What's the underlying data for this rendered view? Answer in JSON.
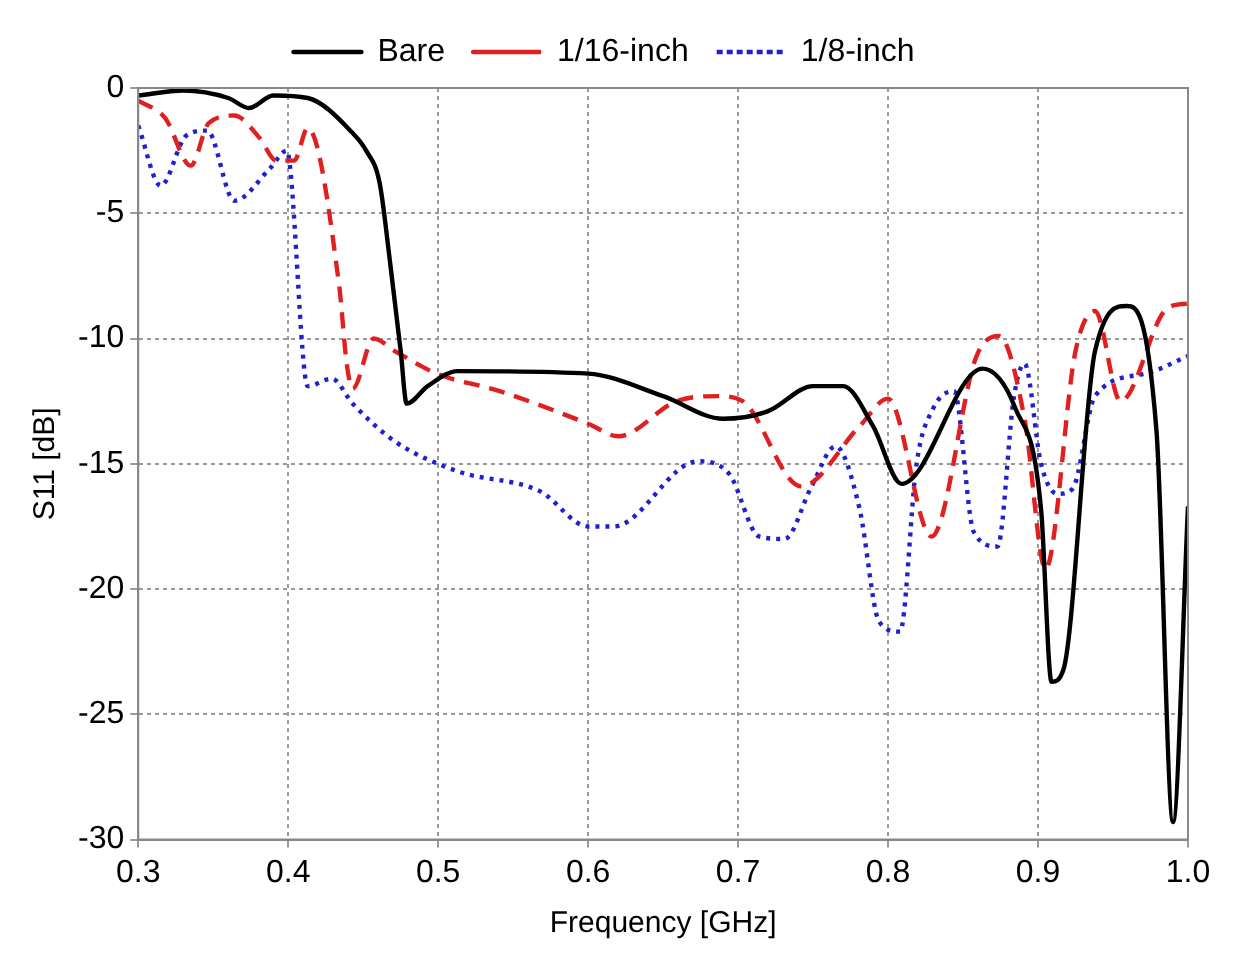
{
  "chart_data": {
    "type": "line",
    "xlabel": "Frequency [GHz]",
    "ylabel": "S11 [dB]",
    "xlim": [
      0.3,
      1.0
    ],
    "xticks": [
      {
        "value": 0.3,
        "label": "0.3"
      },
      {
        "value": 0.4,
        "label": "0.4"
      },
      {
        "value": 0.5,
        "label": "0.5"
      },
      {
        "value": 0.6,
        "label": "0.6"
      },
      {
        "value": 0.7,
        "label": "0.7"
      },
      {
        "value": 0.8,
        "label": "0.8"
      },
      {
        "value": 0.9,
        "label": "0.9"
      },
      {
        "value": 1.0,
        "label": "1.0"
      }
    ],
    "ylim": [
      -30,
      0
    ],
    "yticks": [
      -30,
      -25,
      -20,
      -15,
      -10,
      -5,
      0
    ],
    "grid": true,
    "legend": "top",
    "marker": "none",
    "series": [
      {
        "name": "Bare",
        "color": "#000000",
        "line_style": "solid",
        "x": [
          0.3,
          0.33,
          0.36,
          0.374,
          0.39,
          0.413,
          0.443,
          0.452,
          0.461,
          0.468,
          0.475,
          0.479,
          0.493,
          0.513,
          0.6,
          0.65,
          0.69,
          0.72,
          0.75,
          0.77,
          0.79,
          0.809,
          0.863,
          0.885,
          0.902,
          0.909,
          0.917,
          0.938,
          0.959,
          0.979,
          0.99,
          1.0
        ],
        "values": [
          -0.3,
          -0.1,
          -0.4,
          -0.8,
          -0.3,
          -0.4,
          -1.8,
          -2.5,
          -3.8,
          -7,
          -10.5,
          -12.6,
          -11.9,
          -11.3,
          -11.4,
          -12.3,
          -13.2,
          -12.9,
          -11.9,
          -11.9,
          -13.5,
          -15.8,
          -11.2,
          -12.8,
          -16.8,
          -23.7,
          -23.2,
          -10.5,
          -8.7,
          -13.7,
          -29.3,
          -16.7
        ]
      },
      {
        "name": "1/16-inch",
        "color": "#e02020",
        "line_style": "dashed",
        "x": [
          0.3,
          0.318,
          0.335,
          0.347,
          0.364,
          0.381,
          0.392,
          0.404,
          0.413,
          0.434,
          0.439,
          0.443,
          0.457,
          0.471,
          0.499,
          0.541,
          0.6,
          0.62,
          0.659,
          0.687,
          0.703,
          0.742,
          0.781,
          0.8,
          0.829,
          0.859,
          0.874,
          0.891,
          0.905,
          0.925,
          0.938,
          0.955,
          0.986,
          1.0
        ],
        "values": [
          -0.5,
          -1.2,
          -3.1,
          -1.4,
          -1.1,
          -2,
          -2.9,
          -2.9,
          -1.6,
          -7.9,
          -11,
          -12,
          -10,
          -10.5,
          -11.4,
          -12.1,
          -13.4,
          -13.9,
          -12.5,
          -12.3,
          -12.5,
          -15.9,
          -13.5,
          -12.4,
          -17.9,
          -10.7,
          -9.9,
          -13.2,
          -19.2,
          -10.5,
          -8.9,
          -12.5,
          -8.8,
          -8.6
        ]
      },
      {
        "name": "1/8-inch",
        "color": "#2020d0",
        "line_style": "dotted",
        "x": [
          0.3,
          0.315,
          0.332,
          0.346,
          0.364,
          0.388,
          0.399,
          0.413,
          0.429,
          0.443,
          0.471,
          0.513,
          0.568,
          0.6,
          0.617,
          0.673,
          0.694,
          0.714,
          0.731,
          0.749,
          0.765,
          0.781,
          0.794,
          0.808,
          0.819,
          0.83,
          0.844,
          0.857,
          0.873,
          0.884,
          0.891,
          0.902,
          0.913,
          0.923,
          0.938,
          0.972,
          1.0
        ],
        "values": [
          -1.5,
          -3.9,
          -1.9,
          -1.7,
          -4.5,
          -3.2,
          -2.5,
          -11.9,
          -11.6,
          -12.6,
          -14.1,
          -15.3,
          -16.1,
          -17.5,
          -17.5,
          -14.9,
          -15.4,
          -17.9,
          -18,
          -15.9,
          -14.3,
          -16.8,
          -21.3,
          -21.7,
          -15,
          -12.8,
          -12.1,
          -17.7,
          -18.3,
          -12.3,
          -11,
          -15,
          -16.2,
          -16,
          -12.3,
          -11.4,
          -10.7
        ]
      }
    ]
  }
}
